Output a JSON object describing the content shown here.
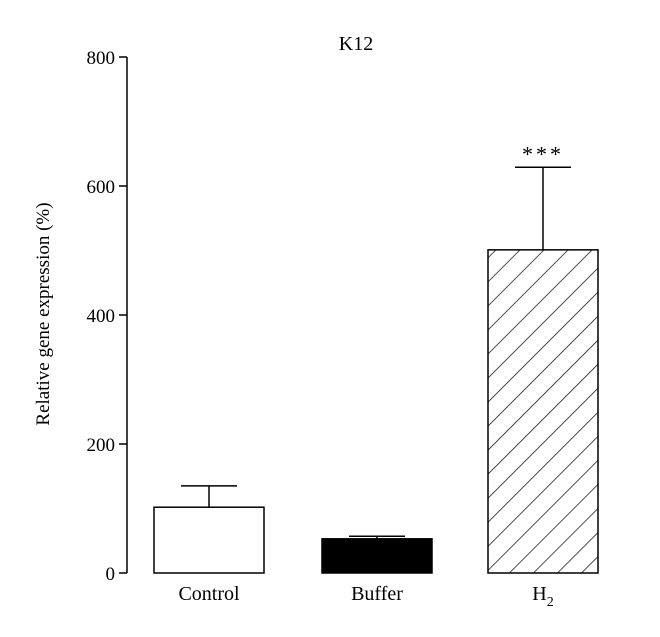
{
  "chart_data": {
    "type": "bar",
    "title": "K12",
    "xlabel": "",
    "ylabel": "Relative gene expression (%)",
    "ylim": [
      0,
      800
    ],
    "yticks": [
      0,
      200,
      400,
      600,
      800
    ],
    "grid": false,
    "categories": [
      "Control",
      "Buffer",
      "H2"
    ],
    "category_labels": [
      {
        "base": "Control",
        "sub": ""
      },
      {
        "base": "Buffer",
        "sub": ""
      },
      {
        "base": "H",
        "sub": "2"
      }
    ],
    "values": [
      102,
      53,
      501
    ],
    "error_upper": [
      33,
      4,
      128
    ],
    "fills": [
      "white",
      "black",
      "hatched"
    ],
    "significance": [
      "",
      "",
      "***"
    ]
  }
}
